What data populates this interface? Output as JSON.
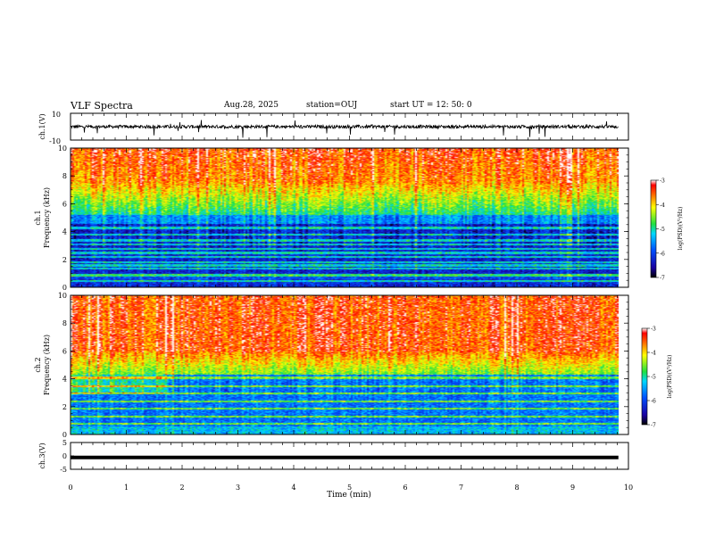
{
  "header": {
    "title": "VLF Spectra",
    "date": "Aug.28, 2025",
    "station": "station=OUJ",
    "start_ut": "start UT =  12: 50: 0"
  },
  "chart_data": [
    {
      "type": "line",
      "ylabel": "ch.1(V)",
      "ylim": [
        -10,
        10
      ],
      "yticks": [
        "10",
        "-10"
      ],
      "baseline": 0,
      "description_of_values": "broadband waveform around 0 V with spikes"
    },
    {
      "type": "heatmap",
      "ylabel_top": "ch.1",
      "ylabel": "Frequency (kHz)",
      "ylim": [
        0,
        10
      ],
      "yticks": [
        "0",
        "2",
        "4",
        "6",
        "8",
        "10"
      ],
      "colorbar": {
        "label": "log(PSD)(V²/Hz)",
        "range": [
          -7,
          -3
        ],
        "ticks": [
          "-3",
          "-4",
          "-5",
          "-6",
          "-7"
        ]
      }
    },
    {
      "type": "heatmap",
      "ylabel_top": "ch.2",
      "ylabel": "Frequency (kHz)",
      "ylim": [
        0,
        10
      ],
      "yticks": [
        "0",
        "2",
        "4",
        "6",
        "8",
        "10"
      ],
      "colorbar": {
        "label": "log(PSD)(V²/Hz)",
        "range": [
          -7,
          -3
        ],
        "ticks": [
          "-3",
          "-4",
          "-5",
          "-6",
          "-7"
        ]
      }
    },
    {
      "type": "line",
      "ylabel": "ch.3(V)",
      "ylim": [
        -5,
        5
      ],
      "yticks": [
        "5",
        "0",
        "-5"
      ],
      "value": -0.6
    }
  ],
  "xaxis": {
    "label": "Time (min)",
    "range": [
      0,
      10
    ],
    "data_end": 9.82,
    "ticks": [
      "0",
      "1",
      "2",
      "3",
      "4",
      "5",
      "6",
      "7",
      "8",
      "9",
      "10"
    ]
  }
}
